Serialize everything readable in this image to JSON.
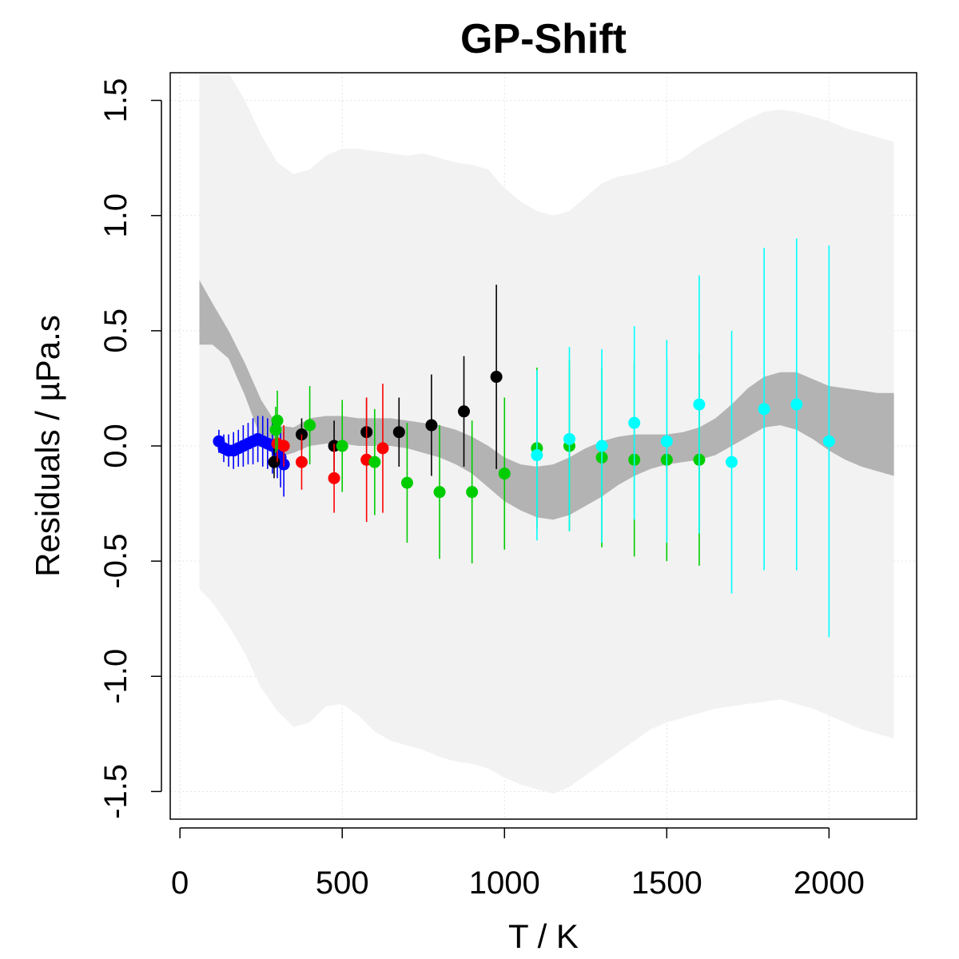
{
  "chart_data": {
    "type": "scatter",
    "title": "GP-Shift",
    "xlabel": "T / K",
    "ylabel": "Residuals / µPa.s",
    "xlim": [
      -30,
      2270
    ],
    "ylim": [
      -1.62,
      1.62
    ],
    "grid": true,
    "x_ticks": [
      0,
      500,
      1000,
      1500,
      2000
    ],
    "x_tick_labels": [
      "0",
      "500",
      "1000",
      "1500",
      "2000"
    ],
    "y_ticks": [
      -1.5,
      -1.0,
      -0.5,
      0.0,
      0.5,
      1.0,
      1.5
    ],
    "y_tick_labels": [
      "-1.5",
      "-1.0",
      "-0.5",
      "0.0",
      "0.5",
      "1.0",
      "1.5"
    ],
    "bands": [
      {
        "name": "outer prediction band",
        "color": "#f2f2f2",
        "x": [
          60,
          100,
          150,
          200,
          250,
          300,
          350,
          400,
          450,
          500,
          550,
          600,
          650,
          700,
          750,
          800,
          850,
          900,
          950,
          1000,
          1050,
          1100,
          1150,
          1200,
          1250,
          1300,
          1350,
          1400,
          1450,
          1500,
          1550,
          1600,
          1650,
          1700,
          1750,
          1800,
          1850,
          1900,
          1950,
          2000,
          2050,
          2100,
          2150,
          2200
        ],
        "upper": [
          1.62,
          1.62,
          1.62,
          1.5,
          1.35,
          1.23,
          1.18,
          1.2,
          1.26,
          1.29,
          1.29,
          1.28,
          1.27,
          1.26,
          1.27,
          1.25,
          1.23,
          1.22,
          1.2,
          1.12,
          1.06,
          1.02,
          1.0,
          1.02,
          1.08,
          1.14,
          1.17,
          1.18,
          1.2,
          1.22,
          1.25,
          1.3,
          1.34,
          1.38,
          1.42,
          1.45,
          1.46,
          1.45,
          1.43,
          1.41,
          1.38,
          1.36,
          1.34,
          1.32
        ],
        "lower": [
          -0.62,
          -0.68,
          -0.78,
          -0.9,
          -1.05,
          -1.15,
          -1.22,
          -1.2,
          -1.13,
          -1.12,
          -1.17,
          -1.24,
          -1.28,
          -1.3,
          -1.32,
          -1.35,
          -1.37,
          -1.38,
          -1.4,
          -1.44,
          -1.47,
          -1.49,
          -1.51,
          -1.48,
          -1.43,
          -1.38,
          -1.33,
          -1.28,
          -1.23,
          -1.2,
          -1.18,
          -1.16,
          -1.14,
          -1.13,
          -1.12,
          -1.11,
          -1.1,
          -1.12,
          -1.14,
          -1.17,
          -1.2,
          -1.23,
          -1.25,
          -1.27
        ]
      },
      {
        "name": "inner mean band",
        "color": "#b3b3b3",
        "x": [
          60,
          100,
          150,
          200,
          250,
          300,
          350,
          400,
          450,
          500,
          550,
          600,
          650,
          700,
          750,
          800,
          850,
          900,
          950,
          1000,
          1050,
          1100,
          1150,
          1200,
          1250,
          1300,
          1350,
          1400,
          1450,
          1500,
          1550,
          1600,
          1650,
          1700,
          1750,
          1800,
          1850,
          1900,
          1950,
          2000,
          2050,
          2100,
          2150,
          2200
        ],
        "upper": [
          0.72,
          0.62,
          0.5,
          0.36,
          0.2,
          0.09,
          0.08,
          0.12,
          0.13,
          0.13,
          0.12,
          0.12,
          0.12,
          0.11,
          0.1,
          0.09,
          0.07,
          0.04,
          0.0,
          -0.05,
          -0.08,
          -0.09,
          -0.08,
          -0.05,
          -0.01,
          0.02,
          0.04,
          0.05,
          0.05,
          0.05,
          0.06,
          0.08,
          0.12,
          0.18,
          0.25,
          0.3,
          0.32,
          0.32,
          0.29,
          0.26,
          0.25,
          0.24,
          0.23,
          0.23
        ],
        "lower": [
          0.44,
          0.44,
          0.38,
          0.22,
          0.03,
          -0.05,
          -0.03,
          0.0,
          0.01,
          0.01,
          0.0,
          0.0,
          0.0,
          -0.01,
          -0.03,
          -0.05,
          -0.08,
          -0.12,
          -0.18,
          -0.24,
          -0.28,
          -0.31,
          -0.32,
          -0.3,
          -0.26,
          -0.22,
          -0.17,
          -0.13,
          -0.1,
          -0.08,
          -0.07,
          -0.06,
          -0.04,
          0.0,
          0.04,
          0.08,
          0.09,
          0.07,
          0.03,
          -0.02,
          -0.06,
          -0.09,
          -0.11,
          -0.13
        ]
      }
    ],
    "series": [
      {
        "name": "blue",
        "color": "#0000ff",
        "x": [
          120,
          135,
          150,
          165,
          180,
          195,
          210,
          225,
          240,
          255,
          270,
          285,
          300,
          310,
          320
        ],
        "y": [
          0.02,
          -0.01,
          -0.02,
          -0.02,
          -0.01,
          0.0,
          0.01,
          0.02,
          0.03,
          0.02,
          0.01,
          0.0,
          -0.02,
          -0.05,
          -0.08
        ],
        "err": [
          0.05,
          0.06,
          0.07,
          0.08,
          0.08,
          0.09,
          0.09,
          0.1,
          0.1,
          0.11,
          0.11,
          0.12,
          0.12,
          0.13,
          0.14
        ]
      },
      {
        "name": "black",
        "color": "#000000",
        "x": [
          290,
          375,
          475,
          575,
          675,
          775,
          875,
          975
        ],
        "y": [
          -0.07,
          0.05,
          0.0,
          0.06,
          0.06,
          0.09,
          0.15,
          0.3
        ],
        "err": [
          0.07,
          0.07,
          0.11,
          0.15,
          0.15,
          0.22,
          0.24,
          0.4
        ]
      },
      {
        "name": "red",
        "color": "#ff0000",
        "x": [
          300,
          320,
          375,
          475,
          575,
          625
        ],
        "y": [
          0.01,
          0.0,
          -0.07,
          -0.14,
          -0.06,
          -0.01
        ],
        "err": [
          0.08,
          0.09,
          0.12,
          0.15,
          0.27,
          0.28
        ]
      },
      {
        "name": "green",
        "color": "#00cd00",
        "x": [
          295,
          300,
          400,
          500,
          600,
          700,
          800,
          900,
          1000,
          1100,
          1200,
          1300,
          1400,
          1500,
          1600
        ],
        "y": [
          0.07,
          0.11,
          0.09,
          0.0,
          -0.07,
          -0.16,
          -0.2,
          -0.2,
          -0.12,
          -0.01,
          0.0,
          -0.05,
          -0.06,
          -0.06,
          -0.06
        ],
        "err": [
          0.1,
          0.13,
          0.17,
          0.2,
          0.23,
          0.26,
          0.29,
          0.31,
          0.33,
          0.35,
          0.37,
          0.39,
          0.42,
          0.44,
          0.46
        ]
      },
      {
        "name": "cyan",
        "color": "#00ffff",
        "x": [
          1100,
          1200,
          1300,
          1400,
          1500,
          1600,
          1700,
          1800,
          1900,
          2000
        ],
        "y": [
          -0.04,
          0.03,
          0.0,
          0.1,
          0.02,
          0.18,
          -0.07,
          0.16,
          0.18,
          0.02
        ],
        "err": [
          0.37,
          0.4,
          0.42,
          0.42,
          0.44,
          0.56,
          0.57,
          0.7,
          0.72,
          0.85
        ]
      }
    ]
  }
}
